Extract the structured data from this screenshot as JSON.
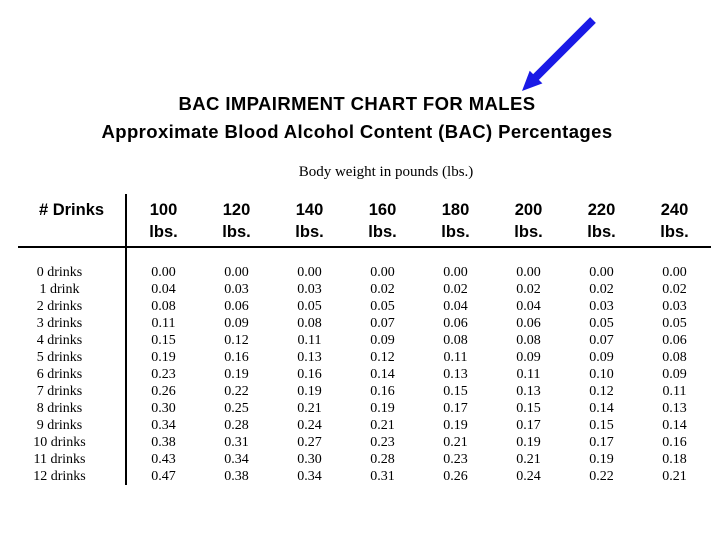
{
  "chart_data": {
    "type": "table",
    "title": "BAC IMPAIRMENT CHART FOR MALES",
    "subtitle": "Approximate Blood Alcohol Content (BAC) Percentages",
    "column_group_label": "Body weight in pounds (lbs.)",
    "row_header": "# Drinks",
    "columns": [
      {
        "weight": "100",
        "unit": "lbs."
      },
      {
        "weight": "120",
        "unit": "lbs."
      },
      {
        "weight": "140",
        "unit": "lbs."
      },
      {
        "weight": "160",
        "unit": "lbs."
      },
      {
        "weight": "180",
        "unit": "lbs."
      },
      {
        "weight": "200",
        "unit": "lbs."
      },
      {
        "weight": "220",
        "unit": "lbs."
      },
      {
        "weight": "240",
        "unit": "lbs."
      }
    ],
    "rows": [
      {
        "label": "0 drinks",
        "values": [
          "0.00",
          "0.00",
          "0.00",
          "0.00",
          "0.00",
          "0.00",
          "0.00",
          "0.00"
        ]
      },
      {
        "label": "1 drink",
        "values": [
          "0.04",
          "0.03",
          "0.03",
          "0.02",
          "0.02",
          "0.02",
          "0.02",
          "0.02"
        ]
      },
      {
        "label": "2 drinks",
        "values": [
          "0.08",
          "0.06",
          "0.05",
          "0.05",
          "0.04",
          "0.04",
          "0.03",
          "0.03"
        ]
      },
      {
        "label": "3 drinks",
        "values": [
          "0.11",
          "0.09",
          "0.08",
          "0.07",
          "0.06",
          "0.06",
          "0.05",
          "0.05"
        ]
      },
      {
        "label": "4 drinks",
        "values": [
          "0.15",
          "0.12",
          "0.11",
          "0.09",
          "0.08",
          "0.08",
          "0.07",
          "0.06"
        ]
      },
      {
        "label": "5 drinks",
        "values": [
          "0.19",
          "0.16",
          "0.13",
          "0.12",
          "0.11",
          "0.09",
          "0.09",
          "0.08"
        ]
      },
      {
        "label": "6 drinks",
        "values": [
          "0.23",
          "0.19",
          "0.16",
          "0.14",
          "0.13",
          "0.11",
          "0.10",
          "0.09"
        ]
      },
      {
        "label": "7 drinks",
        "values": [
          "0.26",
          "0.22",
          "0.19",
          "0.16",
          "0.15",
          "0.13",
          "0.12",
          "0.11"
        ]
      },
      {
        "label": "8 drinks",
        "values": [
          "0.30",
          "0.25",
          "0.21",
          "0.19",
          "0.17",
          "0.15",
          "0.14",
          "0.13"
        ]
      },
      {
        "label": "9 drinks",
        "values": [
          "0.34",
          "0.28",
          "0.24",
          "0.21",
          "0.19",
          "0.17",
          "0.15",
          "0.14"
        ]
      },
      {
        "label": "10 drinks",
        "values": [
          "0.38",
          "0.31",
          "0.27",
          "0.23",
          "0.21",
          "0.19",
          "0.17",
          "0.16"
        ]
      },
      {
        "label": "11 drinks",
        "values": [
          "0.43",
          "0.34",
          "0.30",
          "0.28",
          "0.23",
          "0.21",
          "0.19",
          "0.18"
        ]
      },
      {
        "label": "12 drinks",
        "values": [
          "0.47",
          "0.38",
          "0.34",
          "0.31",
          "0.26",
          "0.24",
          "0.22",
          "0.21"
        ]
      }
    ]
  },
  "annotation": {
    "arrow_color": "#1a1ae6"
  }
}
